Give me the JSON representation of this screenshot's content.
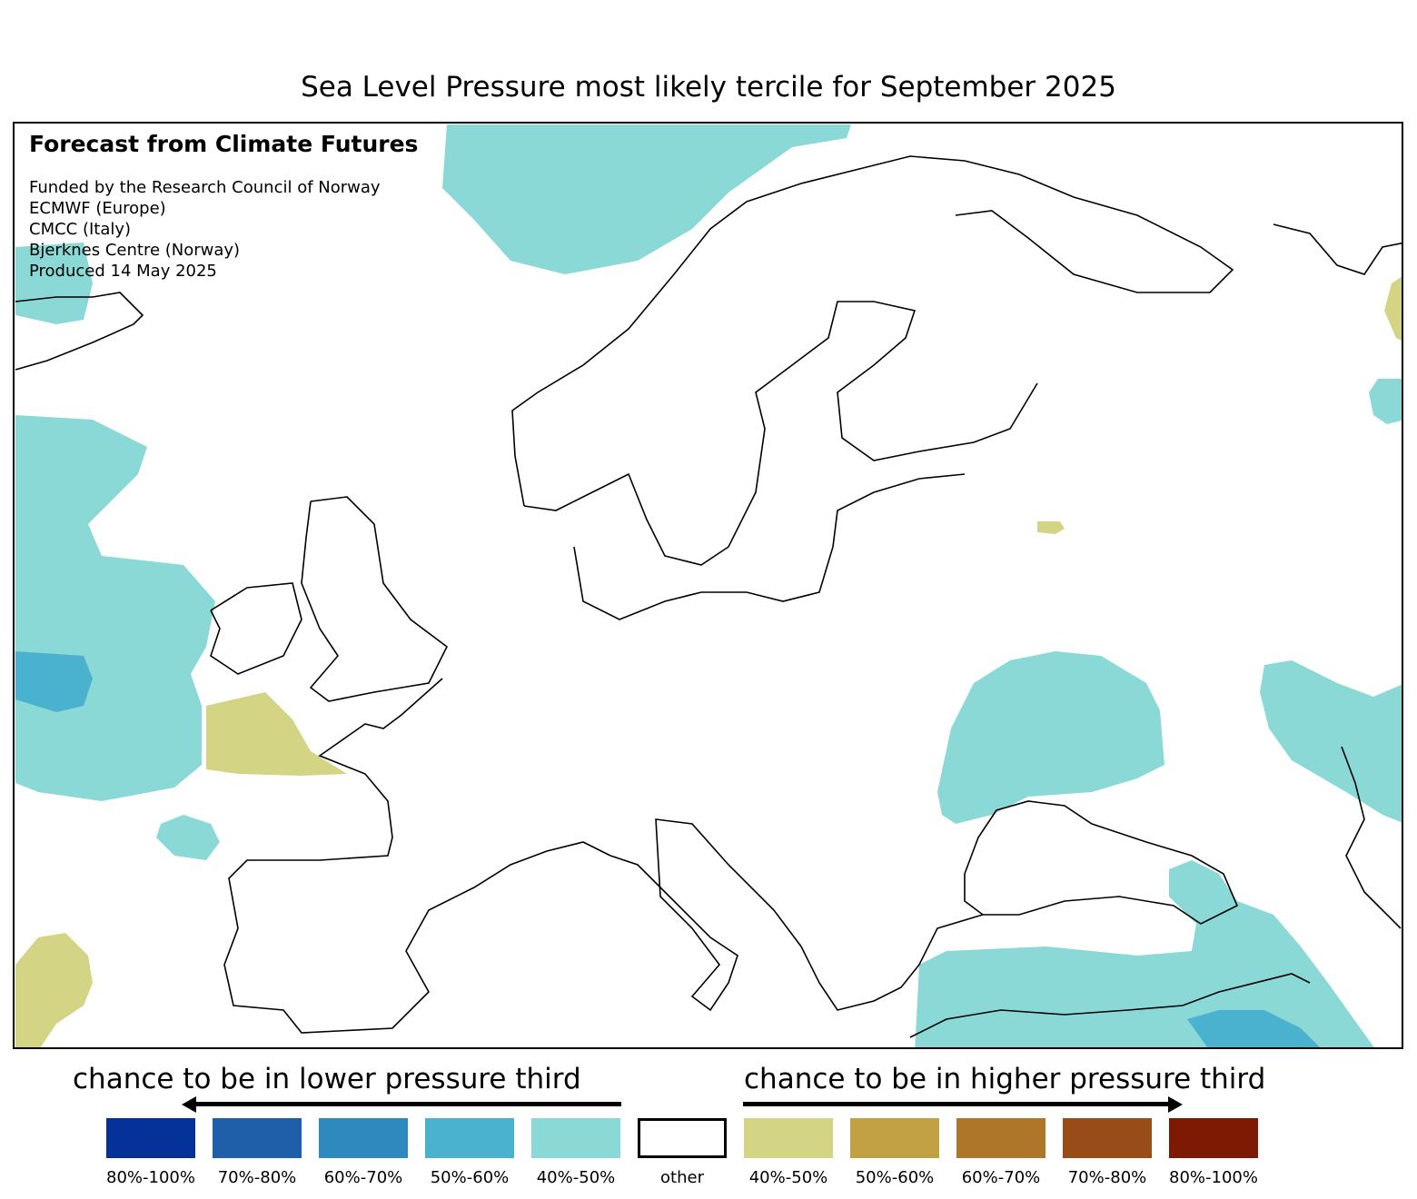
{
  "title": "Sea Level Pressure most likely tercile for September 2025",
  "info": {
    "heading": "Forecast from Climate Futures",
    "lines": [
      "Funded by the Research Council of Norway",
      "ECMWF (Europe)",
      "CMCC (Italy)",
      "Bjerknes Centre (Norway)",
      "Produced 14 May 2025"
    ]
  },
  "legend": {
    "lower_caption": "chance to be in lower pressure third",
    "higher_caption": "chance to be in higher pressure third",
    "items": [
      {
        "label": "80%-100%",
        "color": "#053299"
      },
      {
        "label": "70%-80%",
        "color": "#1f5faa"
      },
      {
        "label": "60%-70%",
        "color": "#2e89be"
      },
      {
        "label": "50%-60%",
        "color": "#4ab1cf"
      },
      {
        "label": "40%-50%",
        "color": "#8ad9d6"
      },
      {
        "label": "other",
        "color": "#ffffff"
      },
      {
        "label": "40%-50%",
        "color": "#d3d584"
      },
      {
        "label": "50%-60%",
        "color": "#c1a143"
      },
      {
        "label": "60%-70%",
        "color": "#ad7629"
      },
      {
        "label": "70%-80%",
        "color": "#984c17"
      },
      {
        "label": "80%-100%",
        "color": "#7e1a03"
      }
    ]
  }
}
